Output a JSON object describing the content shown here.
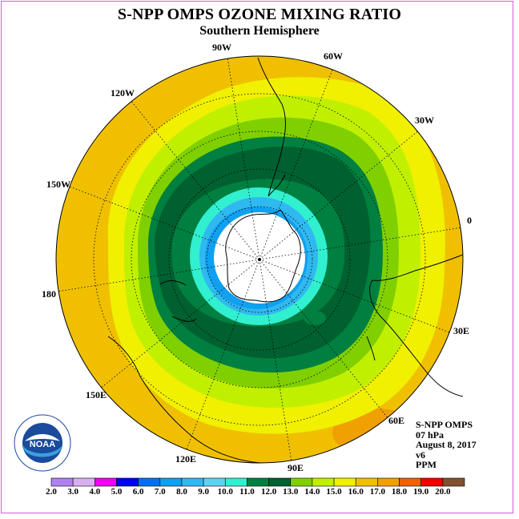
{
  "title": "S-NPP OMPS OZONE MIXING RATIO",
  "subtitle": "Southern Hemisphere",
  "longitude_labels": {
    "lon_90w": "90W",
    "lon_60w": "60W",
    "lon_30w": "30W",
    "lon_0": "0",
    "lon_30e": "30E",
    "lon_60e": "60E",
    "lon_90e": "90E",
    "lon_120e": "120E",
    "lon_150e": "150E",
    "lon_180": "180",
    "lon_150w": "150W",
    "lon_120w": "120W"
  },
  "info": {
    "instrument": "S-NPP OMPS",
    "level": "07 hPa",
    "date": "August 8, 2017",
    "version": "v6",
    "units": "PPM"
  },
  "logo": {
    "text": "NOAA"
  },
  "colorbar": {
    "labels": [
      "2.0",
      "3.0",
      "4.0",
      "5.0",
      "6.0",
      "7.0",
      "8.0",
      "9.0",
      "10.0",
      "11.0",
      "12.0",
      "13.0",
      "14.0",
      "15.0",
      "16.0",
      "17.0",
      "18.0",
      "19.0",
      "20.0"
    ],
    "colors": [
      "#b080f0",
      "#d8b0f0",
      "#f000f0",
      "#0000f0",
      "#0070f0",
      "#10a0f0",
      "#30b8f0",
      "#60d0f0",
      "#30f0d0",
      "#008040",
      "#006030",
      "#80d000",
      "#c0f000",
      "#f0f000",
      "#f0c000",
      "#f0a000",
      "#f06000",
      "#f00000",
      "#805030"
    ]
  },
  "map_colors": {
    "outer_orange": "#f0c000",
    "yellow": "#f0f000",
    "yellow_green": "#c0f000",
    "light_green": "#80d000",
    "green": "#008040",
    "dark_green": "#006030",
    "cyan": "#30f0d0",
    "light_blue": "#30b8f0",
    "blue": "#10a0f0",
    "polar_white": "#ffffff",
    "hotspot_orange": "#f0a000"
  }
}
